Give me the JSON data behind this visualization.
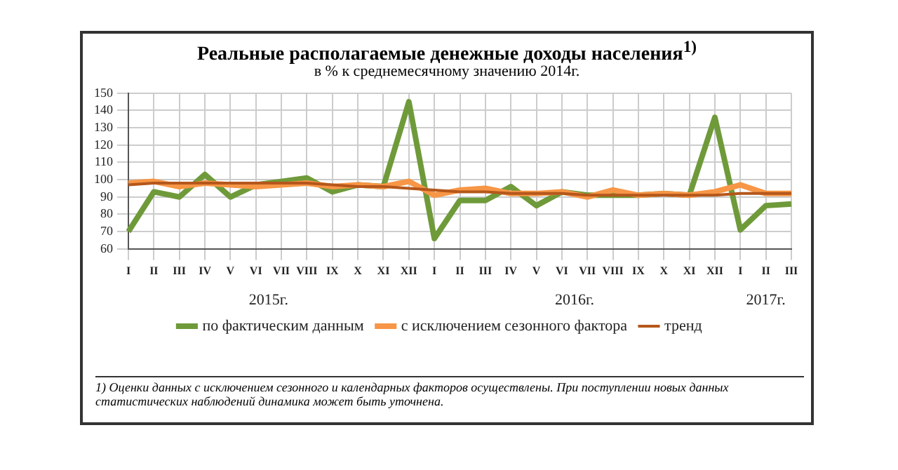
{
  "chart_data": {
    "type": "line",
    "title": "Реальные располагаемые денежные доходы населения$^{1)}$",
    "subtitle": "в % к среднемесячному значению 2014г.",
    "categories": [
      "I",
      "II",
      "III",
      "IV",
      "V",
      "VI",
      "VII",
      "VIII",
      "IX",
      "X",
      "XI",
      "XII",
      "I",
      "II",
      "III",
      "IV",
      "V",
      "VI",
      "VII",
      "VIII",
      "IX",
      "X",
      "XI",
      "XII",
      "I",
      "II",
      "III"
    ],
    "series": [
      {
        "name": "по фактическим данным",
        "color": "#6f9a3a",
        "values": [
          70,
          93,
          90,
          103,
          90,
          97,
          99,
          101,
          93,
          97,
          96,
          145,
          66,
          88,
          88,
          96,
          85,
          93,
          91,
          91,
          91,
          92,
          91,
          136,
          71,
          85,
          86
        ]
      },
      {
        "name": "с исключением сезонного фактора",
        "color": "#f79646",
        "values": [
          98,
          99,
          96,
          98,
          97,
          96,
          97,
          98,
          96,
          97,
          96,
          99,
          91,
          94,
          95,
          92,
          92,
          93,
          90,
          94,
          91,
          92,
          91,
          93,
          97,
          92,
          92
        ]
      },
      {
        "name": "тренд",
        "color": "#b5571b",
        "values": [
          97,
          98,
          98,
          98,
          98,
          98,
          98,
          98,
          97,
          96,
          96,
          95,
          94,
          93,
          93,
          92,
          92,
          92,
          91,
          91,
          91,
          91,
          91,
          91,
          92,
          92,
          92
        ]
      }
    ],
    "ylim": [
      60,
      150
    ],
    "yticks": [
      60,
      70,
      80,
      90,
      100,
      110,
      120,
      130,
      140,
      150
    ],
    "grid": true,
    "legend": "bottom",
    "marker": "none",
    "line_style": "solid",
    "annotations": [
      "2015г.",
      "2016г.",
      "2017г.",
      "1) Оценки данных с исключением сезонного и календарных факторов осуществлены. При поступлении новых данных статистических наблюдений динамика может быть уточнена."
    ]
  }
}
